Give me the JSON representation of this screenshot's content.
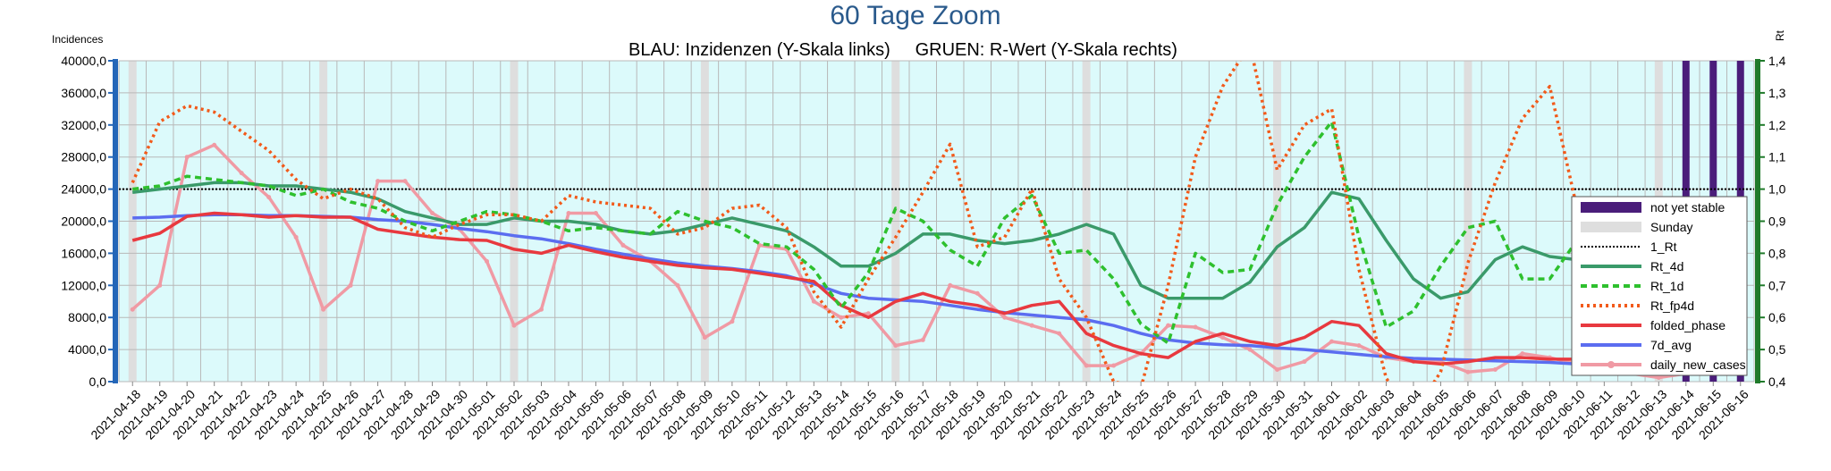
{
  "chart_data": {
    "type": "line",
    "title": "60 Tage Zoom",
    "subtitle": "BLAU: Inzidenzen (Y-Skala links)     GRUEN: R-Wert (Y-Skala rechts)",
    "ylabel_left": "Incidences",
    "ylabel_right": "Rt",
    "ylim_left": [
      0,
      40000
    ],
    "ylim_right": [
      0.4,
      1.4
    ],
    "left_ticks": [
      "0,0",
      "4000,0",
      "8000,0",
      "12000,0",
      "16000,0",
      "20000,0",
      "24000,0",
      "28000,0",
      "32000,0",
      "36000,0",
      "40000,0"
    ],
    "right_ticks": [
      "0,4",
      "0,5",
      "0,6",
      "0,7",
      "0,8",
      "0,9",
      "1,0",
      "1,1",
      "1,2",
      "1,3",
      "1,4"
    ],
    "grid": true,
    "legend_position": "right",
    "x": [
      "2021-04-18",
      "2021-04-19",
      "2021-04-20",
      "2021-04-21",
      "2021-04-22",
      "2021-04-23",
      "2021-04-24",
      "2021-04-25",
      "2021-04-26",
      "2021-04-27",
      "2021-04-28",
      "2021-04-29",
      "2021-04-30",
      "2021-05-01",
      "2021-05-02",
      "2021-05-03",
      "2021-05-04",
      "2021-05-05",
      "2021-05-06",
      "2021-05-07",
      "2021-05-08",
      "2021-05-09",
      "2021-05-10",
      "2021-05-11",
      "2021-05-12",
      "2021-05-13",
      "2021-05-14",
      "2021-05-15",
      "2021-05-16",
      "2021-05-17",
      "2021-05-18",
      "2021-05-19",
      "2021-05-20",
      "2021-05-21",
      "2021-05-22",
      "2021-05-23",
      "2021-05-24",
      "2021-05-25",
      "2021-05-26",
      "2021-05-27",
      "2021-05-28",
      "2021-05-29",
      "2021-05-30",
      "2021-05-31",
      "2021-06-01",
      "2021-06-02",
      "2021-06-03",
      "2021-06-04",
      "2021-06-05",
      "2021-06-06",
      "2021-06-07",
      "2021-06-08",
      "2021-06-09",
      "2021-06-10",
      "2021-06-11",
      "2021-06-12",
      "2021-06-13",
      "2021-06-14",
      "2021-06-15",
      "2021-06-16"
    ],
    "sundays": [
      "2021-04-18",
      "2021-04-25",
      "2021-05-02",
      "2021-05-09",
      "2021-05-16",
      "2021-05-23",
      "2021-05-30",
      "2021-06-06",
      "2021-06-13"
    ],
    "not_yet_stable": [
      "2021-06-14",
      "2021-06-15",
      "2021-06-16"
    ],
    "series": [
      {
        "name": "daily_new_cases",
        "axis": "left",
        "color": "#f09aa4",
        "style": "solid",
        "values": [
          9000,
          12000,
          28000,
          29500,
          26000,
          23000,
          18000,
          9000,
          12000,
          25000,
          25000,
          21000,
          19000,
          15000,
          7000,
          9000,
          21000,
          21000,
          17000,
          15000,
          12000,
          5500,
          7500,
          17000,
          16500,
          10000,
          8000,
          8500,
          4500,
          5200,
          12000,
          11000,
          8000,
          7000,
          6000,
          2000,
          2000,
          3500,
          7000,
          6800,
          5500,
          4000,
          1500,
          2500,
          5000,
          4500,
          3000,
          2500,
          2500,
          1200,
          1500,
          3500,
          3000,
          2200,
          1500,
          1000,
          500,
          1000,
          1500,
          1000
        ]
      },
      {
        "name": "folded_phase",
        "axis": "left",
        "color": "#e8393f",
        "style": "solid",
        "values": [
          17600,
          18500,
          20600,
          21000,
          20800,
          20500,
          20700,
          20500,
          20500,
          19000,
          18500,
          18000,
          17700,
          17600,
          16500,
          16000,
          17000,
          16200,
          15500,
          15000,
          14500,
          14200,
          14000,
          13500,
          13000,
          12500,
          9500,
          8000,
          10000,
          11000,
          10000,
          9500,
          8500,
          9500,
          10000,
          6000,
          4500,
          3500,
          3000,
          5000,
          6000,
          5000,
          4500,
          5500,
          7500,
          7000,
          3500,
          2500,
          2200,
          2500,
          3000,
          3000,
          2800,
          2800,
          2700,
          2600,
          2000,
          2000,
          1800,
          1000
        ]
      },
      {
        "name": "7d_avg",
        "axis": "left",
        "color": "#5b6df0",
        "style": "solid",
        "values": [
          20400,
          20500,
          20700,
          20800,
          20800,
          20700,
          20700,
          20600,
          20500,
          20200,
          20000,
          19600,
          19100,
          18700,
          18200,
          17800,
          17200,
          16500,
          15900,
          15300,
          14800,
          14400,
          14100,
          13700,
          13200,
          12200,
          11000,
          10400,
          10200,
          10000,
          9500,
          9000,
          8600,
          8300,
          8000,
          7700,
          7000,
          6000,
          5200,
          4800,
          4600,
          4500,
          4200,
          4000,
          3700,
          3400,
          3100,
          2900,
          2800,
          2700,
          2600,
          2500,
          2400,
          2200,
          2100,
          2000,
          1900,
          1800,
          1700,
          1600
        ]
      },
      {
        "name": "Rt_fp4d",
        "axis": "right",
        "color": "#f25a1a",
        "style": "dotted",
        "values": [
          1.02,
          1.21,
          1.26,
          1.24,
          1.18,
          1.12,
          1.03,
          0.97,
          1.0,
          0.97,
          0.88,
          0.85,
          0.89,
          0.92,
          0.92,
          0.9,
          0.98,
          0.96,
          0.95,
          0.94,
          0.86,
          0.88,
          0.94,
          0.95,
          0.88,
          0.68,
          0.57,
          0.72,
          0.85,
          0.99,
          1.14,
          0.82,
          0.85,
          1.0,
          0.72,
          0.6,
          0.4,
          0.38,
          0.7,
          1.1,
          1.32,
          1.45,
          1.06,
          1.2,
          1.25,
          0.75,
          0.41,
          0.3,
          0.43,
          0.77,
          1.02,
          1.22,
          1.32,
          0.94,
          0.88,
          0.85,
          0.61,
          0.57,
          0.6,
          0.55
        ]
      },
      {
        "name": "Rt_1d",
        "axis": "right",
        "color": "#2ec02e",
        "style": "dashed",
        "values": [
          1.0,
          1.01,
          1.04,
          1.03,
          1.02,
          1.01,
          0.98,
          1.0,
          0.96,
          0.94,
          0.9,
          0.87,
          0.9,
          0.93,
          0.92,
          0.9,
          0.87,
          0.88,
          0.87,
          0.86,
          0.93,
          0.9,
          0.88,
          0.83,
          0.82,
          0.75,
          0.63,
          0.74,
          0.94,
          0.9,
          0.81,
          0.76,
          0.91,
          0.98,
          0.8,
          0.81,
          0.72,
          0.58,
          0.52,
          0.8,
          0.74,
          0.75,
          0.95,
          1.1,
          1.21,
          0.85,
          0.57,
          0.62,
          0.76,
          0.88,
          0.9,
          0.72,
          0.72,
          0.84,
          0.9,
          0.76,
          0.84,
          0.8,
          0.55,
          0.47
        ]
      },
      {
        "name": "Rt_4d",
        "axis": "right",
        "color": "#3a9a6a",
        "style": "solid",
        "values": [
          0.99,
          1.0,
          1.01,
          1.02,
          1.02,
          1.01,
          1.01,
          1.0,
          0.99,
          0.97,
          0.93,
          0.91,
          0.89,
          0.89,
          0.91,
          0.9,
          0.9,
          0.89,
          0.87,
          0.86,
          0.87,
          0.89,
          0.91,
          0.89,
          0.87,
          0.82,
          0.76,
          0.76,
          0.8,
          0.86,
          0.86,
          0.84,
          0.83,
          0.84,
          0.86,
          0.89,
          0.86,
          0.7,
          0.66,
          0.66,
          0.66,
          0.71,
          0.82,
          0.88,
          0.99,
          0.97,
          0.84,
          0.72,
          0.66,
          0.68,
          0.78,
          0.82,
          0.79,
          0.78,
          0.79,
          0.81,
          0.84,
          0.84,
          0.75,
          0.68
        ]
      }
    ],
    "reference_line": {
      "name": "1_Rt",
      "axis": "right",
      "value": 1.0,
      "color": "#000000"
    },
    "legend": [
      "not yet stable",
      "Sunday",
      "1_Rt",
      "Rt_4d",
      "Rt_1d",
      "Rt_fp4d",
      "folded_phase",
      "7d_avg",
      "daily_new_cases"
    ],
    "colors": {
      "plot_bg": "#dcfafb",
      "grid": "#b8b8b8",
      "sunday": "#dedede",
      "unstable": "#4a1d7a",
      "left_axis": "#2466b8",
      "right_axis": "#1f7a2a",
      "title": "#2a5a8c"
    }
  }
}
